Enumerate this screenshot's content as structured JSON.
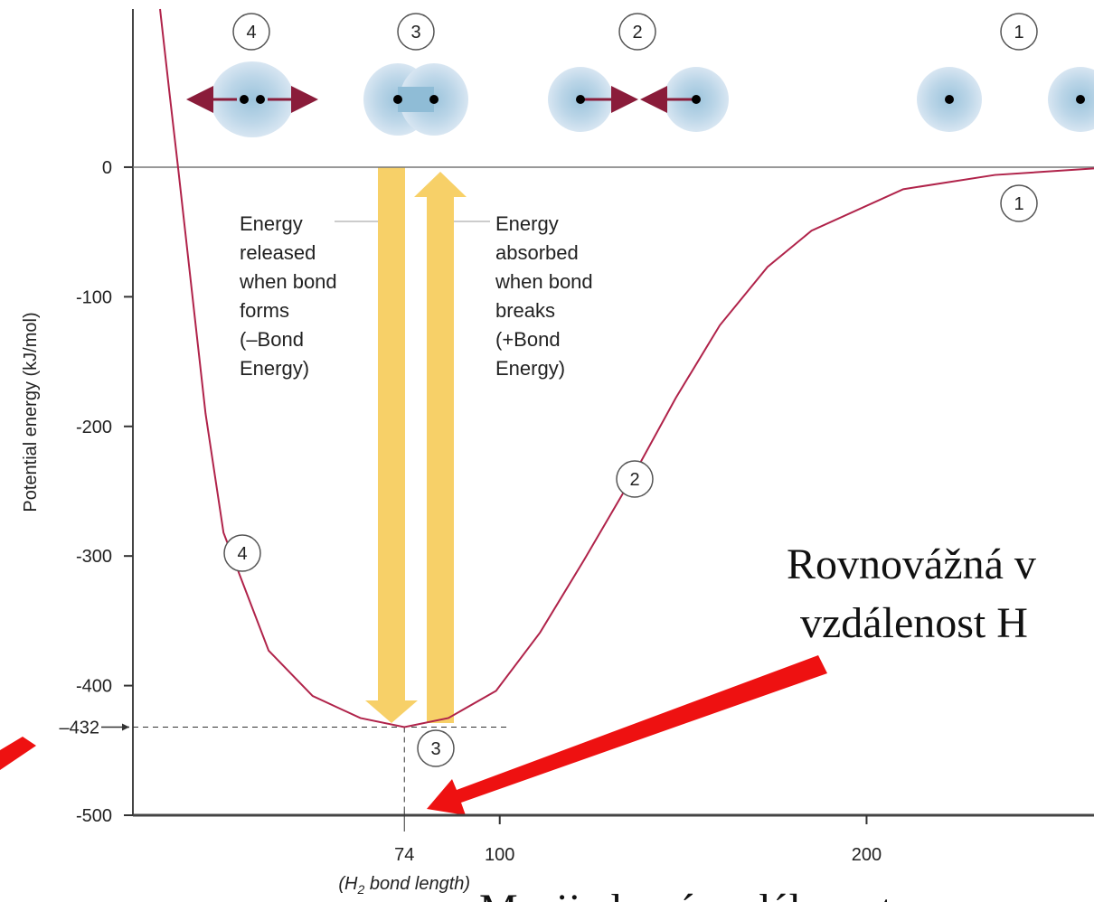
{
  "chart_data": {
    "type": "line",
    "ylabel": "Potential energy (kJ/mol)",
    "xlim": [
      0,
      262
    ],
    "ylim": [
      -500,
      122
    ],
    "xticks": [
      74,
      100,
      200
    ],
    "yticks": [
      0,
      -100,
      -200,
      -300,
      -400,
      {
        "value": -432,
        "label": "–432"
      },
      -500
    ],
    "x_note": [
      "(H",
      "2",
      " bond length)"
    ],
    "series": [
      {
        "color": "#b0234a",
        "x": [
          7.4,
          9.9,
          12.3,
          19.8,
          24.7,
          37,
          49,
          62,
          74,
          86,
          99,
          111,
          123,
          136,
          148,
          160,
          173,
          185,
          210,
          235,
          262
        ],
        "values": [
          122,
          59,
          0,
          -190,
          -282,
          -373,
          -408,
          -425,
          -432,
          -425,
          -404,
          -359,
          -303,
          -240,
          -178,
          -122,
          -77,
          -49,
          -17,
          -6,
          -1
        ]
      }
    ],
    "stage_labels_top": [
      "4",
      "3",
      "2",
      "1"
    ],
    "stage_labels_curve": [
      "1",
      "2",
      "4",
      "3"
    ],
    "released_text": [
      "Energy",
      "released",
      "when bond",
      "forms",
      "(–Bond",
      "Energy)"
    ],
    "absorbed_text": [
      "Energy",
      "absorbed",
      "when bond",
      "breaks",
      "(+Bond",
      "Energy)"
    ],
    "annotation_lines": [
      "Rovnovážná v",
      "vzdálenost H"
    ],
    "bottom_text": "Mezijaderná vzdálenost"
  }
}
